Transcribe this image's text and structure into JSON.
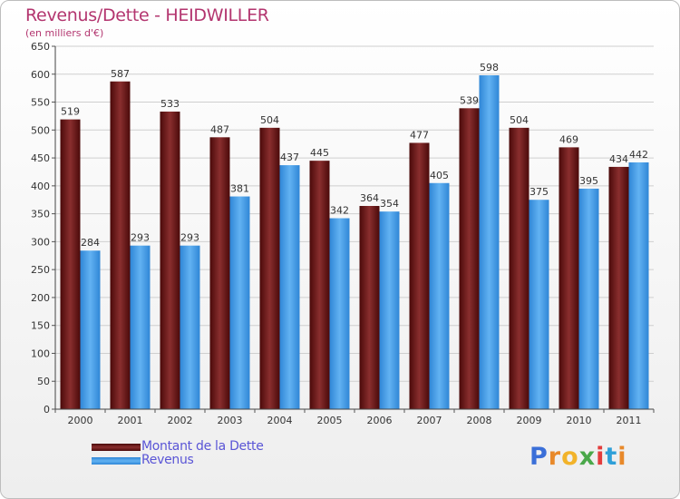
{
  "header": {
    "title": "Revenus/Dette - HEIDWILLER",
    "subtitle": "(en milliers d'€)"
  },
  "logo": {
    "text": "Proxiti",
    "letter_colors": [
      "#3a6fd8",
      "#e8892a",
      "#f2b32a",
      "#4aa84a",
      "#e33c3c",
      "#2fa0d8",
      "#e8892a"
    ]
  },
  "colors": {
    "dette": "#7a2424",
    "revenus": "#4a9ee6"
  },
  "chart_data": {
    "type": "bar",
    "categories": [
      "2000",
      "2001",
      "2002",
      "2003",
      "2004",
      "2005",
      "2006",
      "2007",
      "2008",
      "2009",
      "2010",
      "2011"
    ],
    "series": [
      {
        "name": "Montant de la Dette",
        "values": [
          519,
          587,
          533,
          487,
          504,
          445,
          364,
          477,
          539,
          504,
          469,
          434
        ]
      },
      {
        "name": "Revenus",
        "values": [
          284,
          293,
          293,
          381,
          437,
          342,
          354,
          405,
          598,
          375,
          395,
          442
        ]
      }
    ],
    "ylim": [
      0,
      650
    ],
    "yticks": [
      "0",
      "50",
      "100",
      "150",
      "200",
      "250",
      "300",
      "350",
      "400",
      "450",
      "500",
      "550",
      "600",
      "650"
    ],
    "grid": true,
    "legend_position": "bottom-left"
  }
}
